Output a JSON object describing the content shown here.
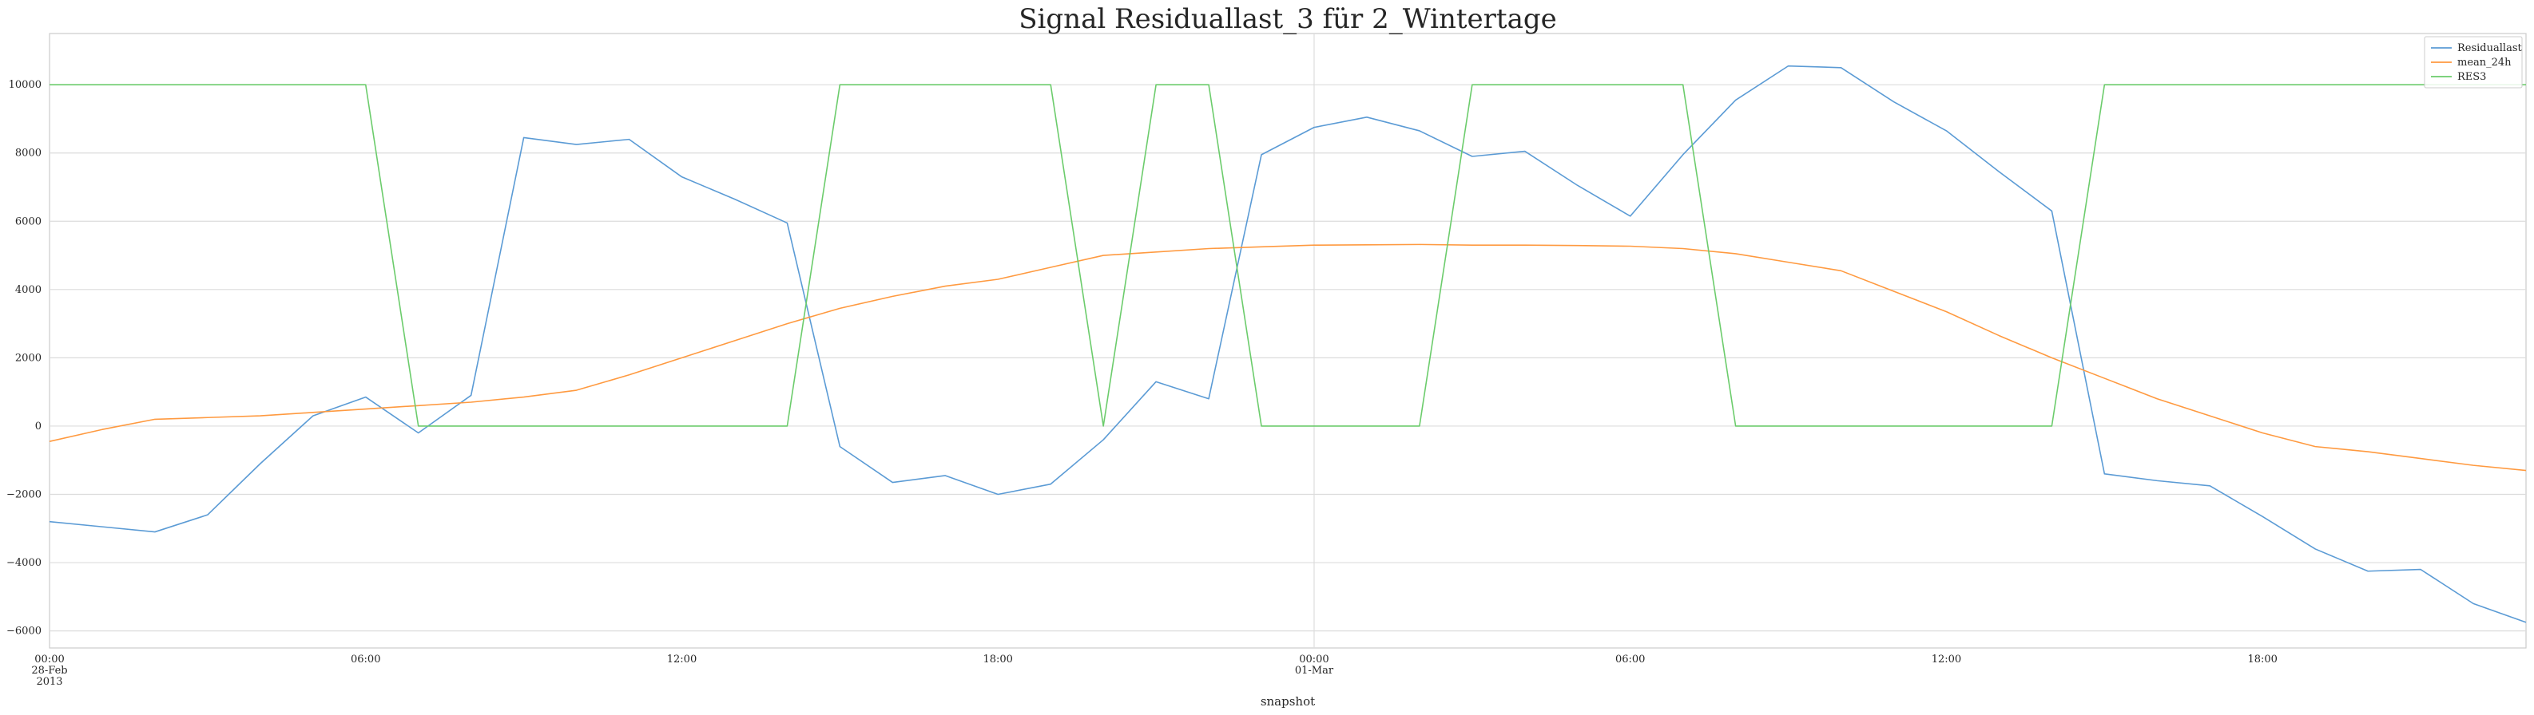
{
  "chart_data": {
    "type": "line",
    "title": "Signal Residuallast_3 für 2_Wintertage",
    "xlabel": "snapshot",
    "ylabel": "",
    "x_hours": [
      0,
      1,
      2,
      3,
      4,
      5,
      6,
      7,
      8,
      9,
      10,
      11,
      12,
      13,
      14,
      15,
      16,
      17,
      18,
      19,
      20,
      21,
      22,
      23,
      24,
      25,
      26,
      27,
      28,
      29,
      30,
      31,
      32,
      33,
      34,
      35,
      36,
      37,
      38,
      39,
      40,
      41,
      42,
      43,
      44,
      45,
      46,
      47
    ],
    "xlim": [
      0,
      47
    ],
    "ylim": [
      -6500,
      11500
    ],
    "yticks": [
      -6000,
      -4000,
      -2000,
      0,
      2000,
      4000,
      6000,
      8000,
      10000
    ],
    "ytick_labels": [
      "−6000",
      "−4000",
      "−2000",
      "0",
      "2000",
      "4000",
      "6000",
      "8000",
      "10000"
    ],
    "xticks": [
      {
        "hour": 0,
        "lines": [
          "00:00",
          "28-Feb",
          "2013"
        ]
      },
      {
        "hour": 6,
        "lines": [
          "06:00"
        ]
      },
      {
        "hour": 12,
        "lines": [
          "12:00"
        ]
      },
      {
        "hour": 18,
        "lines": [
          "18:00"
        ]
      },
      {
        "hour": 24,
        "lines": [
          "00:00",
          "01-Mar"
        ]
      },
      {
        "hour": 30,
        "lines": [
          "06:00"
        ]
      },
      {
        "hour": 36,
        "lines": [
          "12:00"
        ]
      },
      {
        "hour": 42,
        "lines": [
          "18:00"
        ]
      }
    ],
    "grid": true,
    "legend_position": "top-right",
    "series": [
      {
        "name": "Residuallast",
        "color": "#5b9bd5",
        "values": [
          -2800,
          -2950,
          -3100,
          -2600,
          -1100,
          300,
          850,
          -200,
          900,
          8450,
          8250,
          8400,
          7300,
          6650,
          5950,
          -600,
          -1650,
          -1450,
          -2000,
          -1700,
          -400,
          1300,
          800,
          7950,
          8750,
          9050,
          8650,
          7900,
          8050,
          7050,
          6150,
          7950,
          9550,
          10550,
          10500,
          9500,
          8650,
          7450,
          6300,
          -1400,
          -1600,
          -1750,
          -2650,
          -3600,
          -4250,
          -4200,
          -5200,
          -5750
        ]
      },
      {
        "name": "mean_24h",
        "color": "#ff9a40",
        "values": [
          -450,
          -100,
          200,
          250,
          300,
          400,
          500,
          600,
          700,
          850,
          1050,
          1500,
          2000,
          2500,
          3000,
          3450,
          3800,
          4100,
          4300,
          4650,
          5000,
          5100,
          5200,
          5250,
          5300,
          5310,
          5320,
          5300,
          5300,
          5290,
          5270,
          5200,
          5050,
          4800,
          4550,
          3950,
          3350,
          2650,
          2000,
          1400,
          800,
          300,
          -200,
          -600,
          -750,
          -950,
          -1150,
          -1300
        ]
      },
      {
        "name": "RES3",
        "color": "#6ccc6c",
        "values": [
          10000,
          10000,
          10000,
          10000,
          10000,
          10000,
          10000,
          0,
          0,
          0,
          0,
          0,
          0,
          0,
          0,
          10000,
          10000,
          10000,
          10000,
          10000,
          0,
          10000,
          10000,
          0,
          0,
          0,
          0,
          10000,
          10000,
          10000,
          10000,
          10000,
          0,
          0,
          0,
          0,
          0,
          0,
          0,
          10000,
          10000,
          10000,
          10000,
          10000,
          10000,
          10000,
          10000,
          10000
        ]
      }
    ]
  }
}
